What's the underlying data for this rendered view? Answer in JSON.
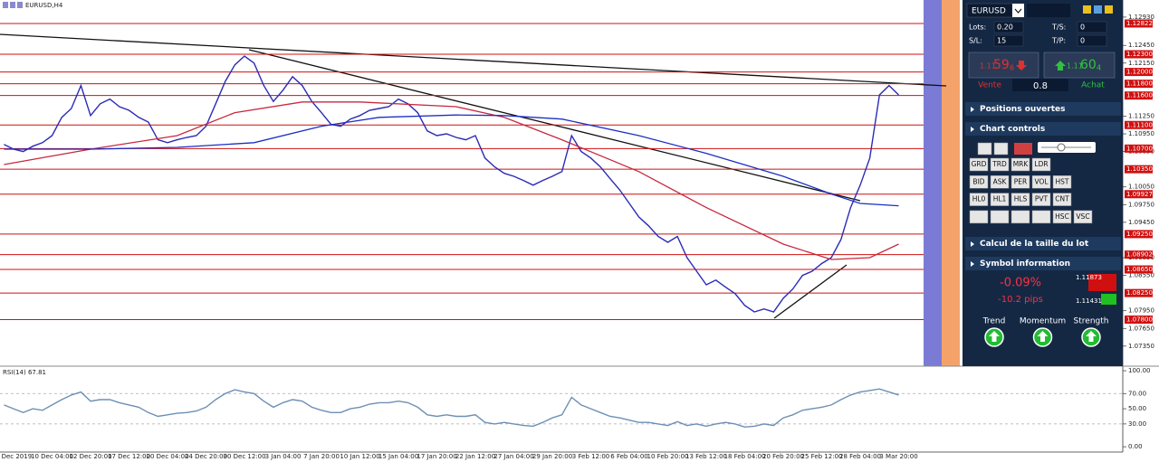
{
  "window_title": "EURUSD,H4",
  "chart_data": [
    {
      "type": "line",
      "categories": [
        null,
        "5 Dec 2019",
        null,
        null,
        null,
        "10 Dec 04:00",
        null,
        null,
        null,
        "12 Dec 20:00",
        null,
        null,
        null,
        "17 Dec 12:00",
        null,
        null,
        null,
        "20 Dec 04:00",
        null,
        null,
        null,
        "24 Dec 20:00",
        null,
        null,
        null,
        "30 Dec 12:00",
        null,
        null,
        null,
        "3 Jan 04:00",
        null,
        null,
        null,
        "7 Jan 20:00",
        null,
        null,
        null,
        "10 Jan 12:00",
        null,
        null,
        null,
        "15 Jan 04:00",
        null,
        null,
        null,
        "17 Jan 20:00",
        null,
        null,
        null,
        "22 Jan 12:00",
        null,
        null,
        null,
        "27 Jan 04:00",
        null,
        null,
        null,
        "29 Jan 20:00",
        null,
        null,
        null,
        "3 Feb 12:00",
        null,
        null,
        null,
        "6 Feb 04:00",
        null,
        null,
        null,
        "10 Feb 20:00",
        null,
        null,
        null,
        "13 Feb 12:00",
        null,
        null,
        null,
        "18 Feb 04:00",
        null,
        null,
        null,
        "20 Feb 20:00",
        null,
        null,
        null,
        "25 Feb 12:00",
        null,
        null,
        null,
        "28 Feb 04:00",
        null,
        null,
        null,
        "3 Mar 20:00"
      ],
      "series": [
        {
          "color": "#2b2bb5",
          "values": [
            1.1077,
            1.1069,
            1.1065,
            1.1074,
            1.108,
            1.1092,
            1.1123,
            1.1138,
            1.1177,
            1.1126,
            1.1146,
            1.1154,
            1.1141,
            1.1135,
            1.1123,
            1.1115,
            1.1085,
            1.108,
            1.1085,
            1.1089,
            1.1092,
            1.1108,
            1.1146,
            1.1184,
            1.1212,
            1.1227,
            1.1215,
            1.1177,
            1.115,
            1.1169,
            1.1192,
            1.1177,
            1.115,
            1.1131,
            1.1111,
            1.1108,
            1.112,
            1.1126,
            1.1135,
            1.1138,
            1.1141,
            1.1154,
            1.1146,
            1.1131,
            1.11,
            1.1092,
            1.1095,
            1.1089,
            1.1085,
            1.1092,
            1.1054,
            1.1039,
            1.1028,
            1.1023,
            1.1016,
            1.1008,
            1.1016,
            1.1023,
            1.1031,
            1.1092,
            1.1065,
            1.1054,
            1.1039,
            1.1019,
            1.1,
            1.0977,
            1.0954,
            1.0939,
            1.0921,
            1.0911,
            1.0921,
            1.0885,
            1.0862,
            1.0839,
            1.0847,
            1.0835,
            1.0824,
            1.0804,
            1.0793,
            1.0798,
            1.0793,
            1.0816,
            1.0832,
            1.0855,
            1.0862,
            1.0875,
            1.0885,
            1.0916,
            1.097,
            1.1008,
            1.1054,
            1.1161,
            1.1177,
            1.1161
          ]
        },
        {
          "color": "#c8283f",
          "x": [
            0,
            9,
            18,
            24,
            31,
            37,
            47,
            52,
            58,
            66,
            73,
            81,
            86,
            90,
            93
          ],
          "values": [
            1.1043,
            1.1069,
            1.1092,
            1.1131,
            1.1149,
            1.1149,
            1.1141,
            1.1123,
            1.1085,
            1.1031,
            1.097,
            1.0908,
            1.0882,
            1.0885,
            1.0908
          ]
        },
        {
          "color": "#1b2fc4",
          "x": [
            0,
            9,
            18,
            26,
            33,
            39,
            47,
            52,
            58,
            66,
            73,
            81,
            86,
            89,
            93
          ],
          "values": [
            1.1069,
            1.1069,
            1.1072,
            1.108,
            1.1108,
            1.1123,
            1.1127,
            1.1126,
            1.112,
            1.1092,
            1.1062,
            1.1023,
            1.0993,
            1.0977,
            1.0973
          ]
        }
      ],
      "levels": [
        {
          "value": 1.12822,
          "label": "1.12822"
        },
        {
          "value": 1.123,
          "label": "1.12300"
        },
        {
          "value": 1.12,
          "label": "1.12000"
        },
        {
          "value": 1.118,
          "label": "1.11800"
        },
        {
          "value": 1.116,
          "label": "1.11600"
        },
        {
          "value": 1.111,
          "label": "1.11100"
        },
        {
          "value": 1.107,
          "label": "1.10700"
        },
        {
          "value": 1.1035,
          "label": "1.10350"
        },
        {
          "value": 1.09927,
          "label": "1.09927"
        },
        {
          "value": 1.0925,
          "label": "1.09250"
        },
        {
          "value": 1.08902,
          "label": "1.08902"
        },
        {
          "value": 1.0865,
          "label": "1.08650"
        },
        {
          "value": 1.0825,
          "label": "1.08250"
        },
        {
          "value": 1.078,
          "label": "1.07800"
        }
      ],
      "level_color": "#d01010",
      "ylim": [
        1.0701,
        1.1322
      ],
      "yticks": [
        {
          "value": 1.0735,
          "label": "1.07350"
        },
        {
          "value": 1.0765,
          "label": "1.07650"
        },
        {
          "value": 1.0795,
          "label": "1.07950"
        },
        {
          "value": 1.0855,
          "label": "1.08550"
        },
        {
          "value": 1.0885,
          "label": "1.08850"
        },
        {
          "value": 1.0945,
          "label": "1.09450"
        },
        {
          "value": 1.0975,
          "label": "1.09750"
        },
        {
          "value": 1.1005,
          "label": "1.10050"
        },
        {
          "value": 1.1065,
          "label": "1.10650"
        },
        {
          "value": 1.1095,
          "label": "1.10950"
        },
        {
          "value": 1.1125,
          "label": "1.11250"
        },
        {
          "value": 1.1215,
          "label": "1.12150"
        },
        {
          "value": 1.1245,
          "label": "1.12450"
        },
        {
          "value": 1.1293,
          "label": "1.12930"
        }
      ],
      "grid": false
    },
    {
      "type": "line",
      "title": "RSI(14) 67.81",
      "series": [
        {
          "color": "#6d8fb5",
          "values": [
            55,
            50,
            45,
            50,
            48,
            55,
            62,
            68,
            72,
            60,
            62,
            62,
            58,
            55,
            52,
            45,
            40,
            42,
            44,
            45,
            47,
            52,
            62,
            70,
            75,
            72,
            70,
            60,
            52,
            58,
            62,
            60,
            52,
            48,
            45,
            45,
            50,
            52,
            56,
            58,
            58,
            60,
            58,
            52,
            42,
            40,
            42,
            40,
            40,
            42,
            32,
            30,
            32,
            30,
            28,
            27,
            32,
            38,
            42,
            65,
            55,
            50,
            45,
            40,
            38,
            35,
            32,
            32,
            30,
            28,
            33,
            28,
            30,
            27,
            30,
            32,
            30,
            26,
            27,
            30,
            28,
            38,
            42,
            48,
            50,
            52,
            55,
            62,
            68,
            72,
            74,
            76,
            72,
            68
          ]
        }
      ],
      "ylim": [
        -7,
        106
      ],
      "yticks": [
        {
          "value": 0,
          "label": "0.00"
        },
        {
          "value": 30,
          "label": "30.00"
        },
        {
          "value": 50,
          "label": "50.00"
        },
        {
          "value": 70,
          "label": "70.00"
        },
        {
          "value": 100,
          "label": "100.00"
        }
      ],
      "dashed_levels": [
        70,
        30
      ]
    }
  ],
  "panel": {
    "symbol": "EURUSD",
    "fields": [
      {
        "label": "Lots:",
        "value": "0.20"
      },
      {
        "label": "S/L:",
        "value": "15"
      },
      {
        "label": "T/S:",
        "value": "0"
      },
      {
        "label": "T/P:",
        "value": "0"
      }
    ],
    "sell": {
      "price": "1.11",
      "pips": "59",
      "fraction": "6",
      "label": "Vente"
    },
    "buy": {
      "price": "1.11",
      "pips": "60",
      "fraction": "4",
      "label": "Achat"
    },
    "spread": "0.8",
    "sections": [
      "Positions ouvertes",
      "Chart controls",
      "Calcul de la taille du lot",
      "Symbol information"
    ],
    "control_rows": [
      [
        "GRD",
        "TRD",
        "MRK",
        "LDR"
      ],
      [
        "BID",
        "ASK",
        "PER",
        "VOL",
        "HST"
      ],
      [
        "HL0",
        "HL1",
        "HLS",
        "PVT",
        "CNT"
      ],
      [
        "HSC",
        "VSC"
      ]
    ],
    "change_percent": "-0.09%",
    "change_pips": "-10.2 pips",
    "high": "1.11873",
    "low": "1.11431",
    "indicators": [
      "Trend",
      "Momentum",
      "Strength"
    ]
  }
}
